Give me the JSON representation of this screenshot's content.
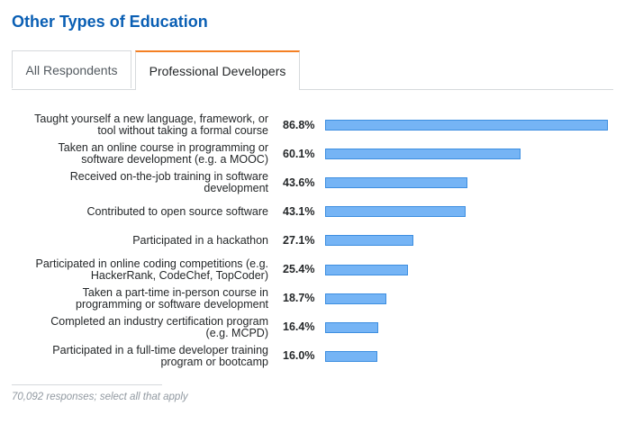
{
  "section_title": "Other Types of Education",
  "tabs": [
    {
      "label": "All Respondents",
      "active": false
    },
    {
      "label": "Professional Developers",
      "active": true
    }
  ],
  "chart_data": {
    "type": "bar",
    "orientation": "horizontal",
    "categories": [
      "Taught yourself a new language, framework, or tool without taking a formal course",
      "Taken an online course in programming or software development (e.g. a MOOC)",
      "Received on-the-job training in software development",
      "Contributed to open source software",
      "Participated in a hackathon",
      "Participated in online coding competitions (e.g. HackerRank, CodeChef, TopCoder)",
      "Taken a part-time in-person course in programming or software development",
      "Completed an industry certification program (e.g. MCPD)",
      "Participated in a full-time developer training program or bootcamp"
    ],
    "label_lines": [
      [
        "Taught yourself a new language, framework, or",
        "tool without taking a formal course"
      ],
      [
        "Taken an online course in programming or",
        "software development (e.g. a MOOC)"
      ],
      [
        "Received on-the-job training in software",
        "development"
      ],
      [
        "Contributed to open source software"
      ],
      [
        "Participated in a hackathon"
      ],
      [
        "Participated in online coding competitions (e.g.",
        "HackerRank, CodeChef, TopCoder)"
      ],
      [
        "Taken a part-time in-person course in",
        "programming or software development"
      ],
      [
        "Completed an industry certification program",
        "(e.g. MCPD)"
      ],
      [
        "Participated in a full-time developer training",
        "program or bootcamp"
      ]
    ],
    "values": [
      86.8,
      60.1,
      43.6,
      43.1,
      27.1,
      25.4,
      18.7,
      16.4,
      16.0
    ],
    "value_labels": [
      "86.8%",
      "60.1%",
      "43.6%",
      "43.1%",
      "27.1%",
      "25.4%",
      "18.7%",
      "16.4%",
      "16.0%"
    ],
    "unit": "%",
    "xlim": [
      0,
      86.8
    ],
    "bar_color": "#75b4f5",
    "bar_border_color": "#3d8ee0"
  },
  "footnote": "70,092 responses; select all that apply",
  "colors": {
    "title": "#0a5fb4",
    "active_tab_accent": "#f48024"
  }
}
